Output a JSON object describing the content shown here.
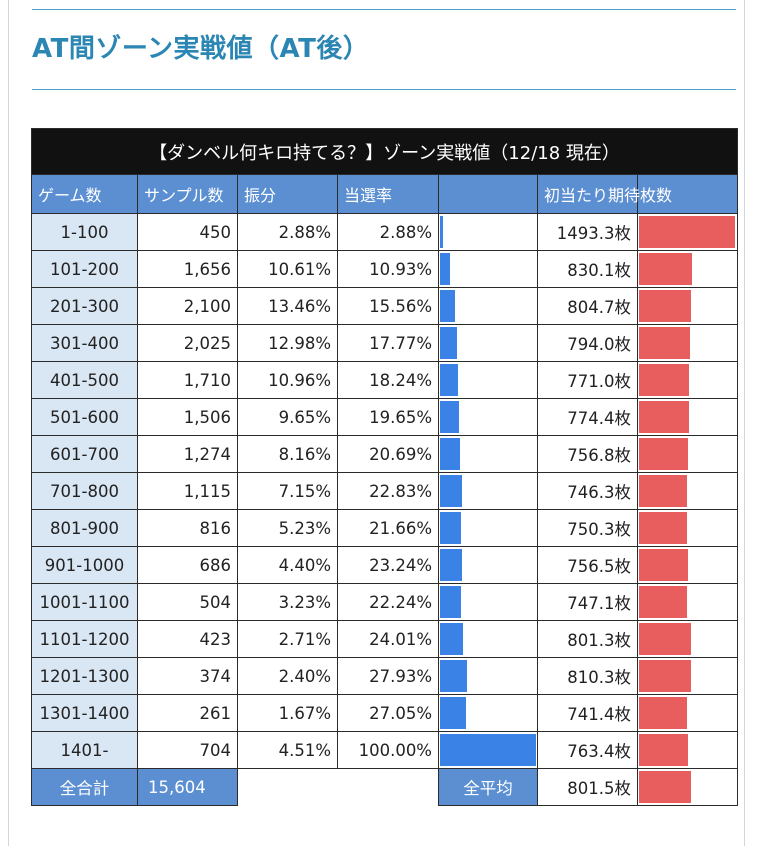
{
  "page": {
    "title": "AT間ゾーン実戦値（AT後）"
  },
  "table": {
    "caption": "【ダンベル何キロ持てる？】ゾーン実戦値（12/18 現在）",
    "headers": [
      "ゲーム数",
      "サンプル数",
      "振分",
      "当選率",
      "",
      "初当たり期待枚数",
      ""
    ],
    "bar_colors": {
      "win_rate": "#3b82e6",
      "expected": "#e85d5d",
      "header": "#5b8fd1",
      "zone_cell": "#d9e6f4"
    },
    "rows": [
      {
        "zone": "1-100",
        "samples": "450",
        "share": "2.88%",
        "win_rate": "2.88%",
        "expected": "1493.3枚",
        "win_rate_value": 2.88,
        "expected_value": 1493.3
      },
      {
        "zone": "101-200",
        "samples": "1,656",
        "share": "10.61%",
        "win_rate": "10.93%",
        "expected": "830.1枚",
        "win_rate_value": 10.93,
        "expected_value": 830.1
      },
      {
        "zone": "201-300",
        "samples": "2,100",
        "share": "13.46%",
        "win_rate": "15.56%",
        "expected": "804.7枚",
        "win_rate_value": 15.56,
        "expected_value": 804.7
      },
      {
        "zone": "301-400",
        "samples": "2,025",
        "share": "12.98%",
        "win_rate": "17.77%",
        "expected": "794.0枚",
        "win_rate_value": 17.77,
        "expected_value": 794.0
      },
      {
        "zone": "401-500",
        "samples": "1,710",
        "share": "10.96%",
        "win_rate": "18.24%",
        "expected": "771.0枚",
        "win_rate_value": 18.24,
        "expected_value": 771.0
      },
      {
        "zone": "501-600",
        "samples": "1,506",
        "share": "9.65%",
        "win_rate": "19.65%",
        "expected": "774.4枚",
        "win_rate_value": 19.65,
        "expected_value": 774.4
      },
      {
        "zone": "601-700",
        "samples": "1,274",
        "share": "8.16%",
        "win_rate": "20.69%",
        "expected": "756.8枚",
        "win_rate_value": 20.69,
        "expected_value": 756.8
      },
      {
        "zone": "701-800",
        "samples": "1,115",
        "share": "7.15%",
        "win_rate": "22.83%",
        "expected": "746.3枚",
        "win_rate_value": 22.83,
        "expected_value": 746.3
      },
      {
        "zone": "801-900",
        "samples": "816",
        "share": "5.23%",
        "win_rate": "21.66%",
        "expected": "750.3枚",
        "win_rate_value": 21.66,
        "expected_value": 750.3
      },
      {
        "zone": "901-1000",
        "samples": "686",
        "share": "4.40%",
        "win_rate": "23.24%",
        "expected": "756.5枚",
        "win_rate_value": 23.24,
        "expected_value": 756.5
      },
      {
        "zone": "1001-1100",
        "samples": "504",
        "share": "3.23%",
        "win_rate": "22.24%",
        "expected": "747.1枚",
        "win_rate_value": 22.24,
        "expected_value": 747.1
      },
      {
        "zone": "1101-1200",
        "samples": "423",
        "share": "2.71%",
        "win_rate": "24.01%",
        "expected": "801.3枚",
        "win_rate_value": 24.01,
        "expected_value": 801.3
      },
      {
        "zone": "1201-1300",
        "samples": "374",
        "share": "2.40%",
        "win_rate": "27.93%",
        "expected": "810.3枚",
        "win_rate_value": 27.93,
        "expected_value": 810.3
      },
      {
        "zone": "1301-1400",
        "samples": "261",
        "share": "1.67%",
        "win_rate": "27.05%",
        "expected": "741.4枚",
        "win_rate_value": 27.05,
        "expected_value": 741.4
      },
      {
        "zone": "1401-",
        "samples": "704",
        "share": "4.51%",
        "win_rate": "100.00%",
        "expected": "763.4枚",
        "win_rate_value": 100.0,
        "expected_value": 763.4
      }
    ],
    "footer": {
      "total_label": "全合計",
      "total_samples": "15,604",
      "avg_label": "全平均",
      "avg_expected": "801.5枚",
      "avg_expected_value": 801.5
    }
  }
}
